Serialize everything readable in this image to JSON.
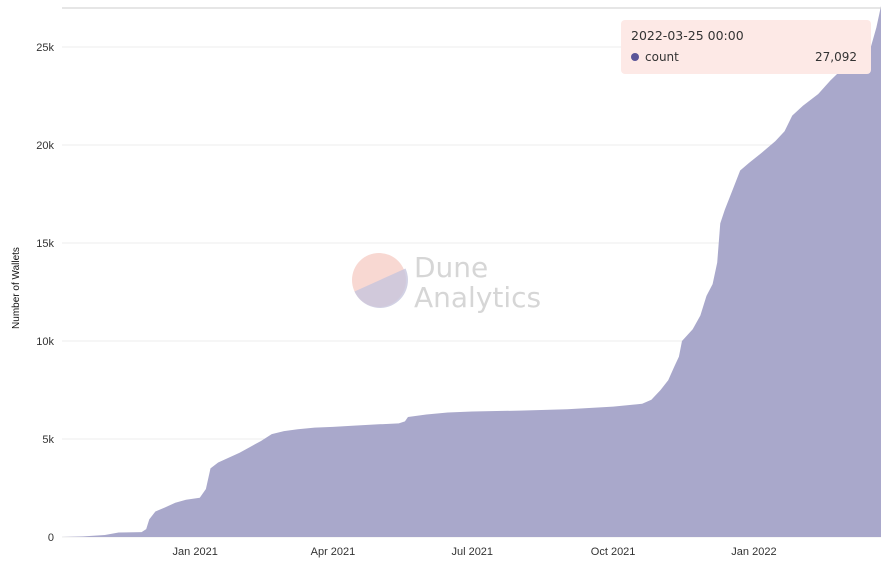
{
  "chart_data": {
    "type": "area",
    "title": "",
    "xlabel": "",
    "ylabel": "Number of Wallets",
    "x_range": [
      "2020-10-06",
      "2022-03-25"
    ],
    "ylim": [
      0,
      27000
    ],
    "y_ticks": [
      0,
      5000,
      10000,
      15000,
      20000,
      25000
    ],
    "y_tick_labels": [
      "0",
      "5k",
      "10k",
      "15k",
      "20k",
      "25k"
    ],
    "x_ticks": [
      "2021-01-01",
      "2021-04-01",
      "2021-07-01",
      "2021-10-01",
      "2022-01-01"
    ],
    "x_tick_labels": [
      "Jan 2021",
      "Apr 2021",
      "Jul 2021",
      "Oct 2021",
      "Jan 2022"
    ],
    "grid": true,
    "series": [
      {
        "name": "count",
        "color": "#a9a8cb",
        "points": [
          [
            "2020-10-06",
            0
          ],
          [
            "2020-10-20",
            30
          ],
          [
            "2020-11-03",
            100
          ],
          [
            "2020-11-12",
            230
          ],
          [
            "2020-11-27",
            250
          ],
          [
            "2020-11-30",
            400
          ],
          [
            "2020-12-02",
            900
          ],
          [
            "2020-12-06",
            1300
          ],
          [
            "2020-12-12",
            1500
          ],
          [
            "2020-12-19",
            1750
          ],
          [
            "2020-12-26",
            1900
          ],
          [
            "2021-01-04",
            2000
          ],
          [
            "2021-01-08",
            2450
          ],
          [
            "2021-01-11",
            3500
          ],
          [
            "2021-01-16",
            3800
          ],
          [
            "2021-01-23",
            4050
          ],
          [
            "2021-01-30",
            4300
          ],
          [
            "2021-02-06",
            4600
          ],
          [
            "2021-02-13",
            4900
          ],
          [
            "2021-02-20",
            5250
          ],
          [
            "2021-02-28",
            5400
          ],
          [
            "2021-03-09",
            5500
          ],
          [
            "2021-03-20",
            5580
          ],
          [
            "2021-04-01",
            5620
          ],
          [
            "2021-04-15",
            5680
          ],
          [
            "2021-05-01",
            5750
          ],
          [
            "2021-05-14",
            5800
          ],
          [
            "2021-05-18",
            5900
          ],
          [
            "2021-05-20",
            6120
          ],
          [
            "2021-06-01",
            6250
          ],
          [
            "2021-06-15",
            6350
          ],
          [
            "2021-07-01",
            6400
          ],
          [
            "2021-08-01",
            6450
          ],
          [
            "2021-09-01",
            6520
          ],
          [
            "2021-10-01",
            6650
          ],
          [
            "2021-10-20",
            6800
          ],
          [
            "2021-10-26",
            7000
          ],
          [
            "2021-11-01",
            7500
          ],
          [
            "2021-11-06",
            8000
          ],
          [
            "2021-11-10",
            8700
          ],
          [
            "2021-11-13",
            9200
          ],
          [
            "2021-11-15",
            10000
          ],
          [
            "2021-11-22",
            10600
          ],
          [
            "2021-11-27",
            11300
          ],
          [
            "2021-12-01",
            12300
          ],
          [
            "2021-12-05",
            12900
          ],
          [
            "2021-12-08",
            14000
          ],
          [
            "2021-12-10",
            16000
          ],
          [
            "2021-12-13",
            16700
          ],
          [
            "2021-12-18",
            17700
          ],
          [
            "2021-12-23",
            18700
          ],
          [
            "2021-12-29",
            19100
          ],
          [
            "2022-01-06",
            19600
          ],
          [
            "2022-01-15",
            20200
          ],
          [
            "2022-01-21",
            20700
          ],
          [
            "2022-01-26",
            21500
          ],
          [
            "2022-02-02",
            22000
          ],
          [
            "2022-02-12",
            22600
          ],
          [
            "2022-02-20",
            23300
          ],
          [
            "2022-02-28",
            23900
          ],
          [
            "2022-03-08",
            24500
          ],
          [
            "2022-03-15",
            24700
          ],
          [
            "2022-03-18",
            24900
          ],
          [
            "2022-03-22",
            26000
          ],
          [
            "2022-03-25",
            27092
          ]
        ]
      }
    ]
  },
  "watermark": {
    "line1": "Dune",
    "line2": "Analytics"
  },
  "tooltip": {
    "title": "2022-03-25 00:00",
    "series_name": "count",
    "value": "27,092",
    "dot_color": "#5a5598"
  }
}
